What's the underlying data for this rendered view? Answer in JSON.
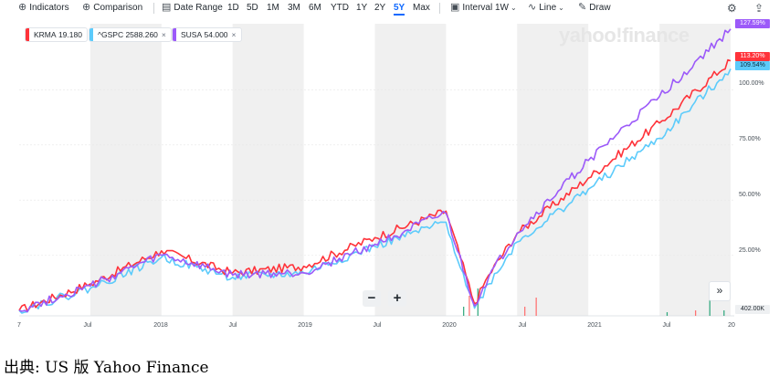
{
  "toolbar": {
    "indicators_label": "Indicators",
    "comparison_label": "Comparison",
    "date_range_label": "Date Range",
    "ranges": [
      "1D",
      "5D",
      "1M",
      "3M",
      "6M",
      "YTD",
      "1Y",
      "2Y",
      "5Y",
      "Max"
    ],
    "active_range": "5Y",
    "interval_label": "Interval",
    "interval_value": "1W",
    "chart_type_label": "Line",
    "draw_label": "Draw"
  },
  "watermark": "yahoo!finance",
  "caption": "出典: US 版 Yahoo Finance",
  "colors": {
    "krma": "#ff333a",
    "gspc": "#5ccbfb",
    "susa": "#9c5af9",
    "band": "#f0f0f0",
    "volume_up": "#2ba57a",
    "volume_down": "#ff6b6b"
  },
  "tickers": [
    {
      "symbol": "KRMA",
      "price": "19.180",
      "closable": false
    },
    {
      "symbol": "^GSPC",
      "price": "2588.260",
      "closable": true
    },
    {
      "symbol": "SUSA",
      "price": "54.000",
      "closable": true
    }
  ],
  "end_labels": {
    "susa": "127.59%",
    "krma": "113.20%",
    "gspc": "109.54%"
  },
  "volume_label": "402.00K",
  "zoom_out_label": "−",
  "zoom_in_label": "+",
  "expand_label": "»",
  "chart_data": {
    "type": "line",
    "x": [
      0,
      0.5,
      1,
      1.5,
      2,
      2.5,
      3,
      3.2,
      3.3,
      3.5,
      4,
      4.5,
      5
    ],
    "x_axis_ticks": [
      "7",
      "Jul",
      "2018",
      "Jul",
      "2019",
      "Jul",
      "2020",
      "Jul",
      "2021",
      "Jul",
      "20"
    ],
    "x_axis_tick_positions": [
      0,
      0.5,
      1,
      1.5,
      2,
      2.5,
      3,
      3.5,
      4,
      4.5,
      5
    ],
    "y_axis_ticks": [
      "25.00%",
      "50.00%",
      "75.00%",
      "100.00%"
    ],
    "y_axis_unit": "percent change",
    "ylim": [
      0,
      130
    ],
    "series": [
      {
        "name": "KRMA",
        "values": [
          0,
          12,
          27,
          17,
          20,
          33,
          45,
          3,
          16,
          35,
          60,
          85,
          113.2
        ]
      },
      {
        "name": "^GSPC",
        "values": [
          0,
          10,
          24,
          15,
          17,
          29,
          40,
          1,
          12,
          31,
          55,
          78,
          109.54
        ]
      },
      {
        "name": "SUSA",
        "values": [
          0,
          11,
          25,
          16,
          17,
          30,
          44,
          2,
          15,
          35,
          68,
          97,
          127.59
        ]
      }
    ],
    "grid": true,
    "legend_placement": "top-left"
  }
}
